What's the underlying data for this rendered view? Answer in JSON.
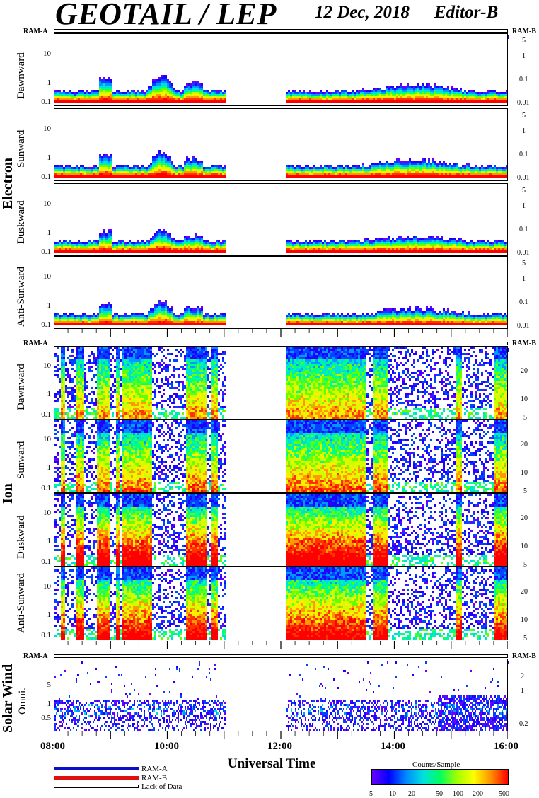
{
  "header": {
    "title": "GEOTAIL / LEP",
    "date": "12 Dec, 2018",
    "editor": "Editor-B"
  },
  "status_labels": {
    "left": "RAM-A",
    "right": "RAM-B"
  },
  "groups": {
    "electron": "Electron",
    "ion": "Ion",
    "solar_wind": "Solar Wind"
  },
  "panels": {
    "e_dawn": "Dawnward",
    "e_sun": "Sunward",
    "e_dusk": "Duskward",
    "e_anti": "Anti-Sunward",
    "i_dawn": "Dawnward",
    "i_sun": "Sunward",
    "i_dusk": "Duskward",
    "i_anti": "Anti-Sunward",
    "sw_omni": "Omni."
  },
  "electron_left_ticks": [
    "10",
    "1",
    "0.1"
  ],
  "electron_right_ticks": [
    "5",
    "1",
    "0.1",
    "0.01"
  ],
  "ion_left_ticks": [
    "10",
    "1",
    "0.1"
  ],
  "ion_right_ticks": [
    "20",
    "10",
    "5"
  ],
  "sw_left_ticks": [
    "5",
    "1",
    "0.5"
  ],
  "sw_right_ticks": [
    "2",
    "1",
    "0.2"
  ],
  "x_axis": {
    "title": "Universal Time",
    "ticks": [
      "08:00",
      "10:00",
      "12:00",
      "14:00",
      "16:00"
    ]
  },
  "legend": {
    "ram_a": "RAM-A",
    "ram_b": "RAM-B",
    "no_data": "Lack of Data",
    "colors": {
      "ram_a": "#0a10c8",
      "ram_b": "#e01010"
    }
  },
  "colorbar": {
    "title": "Counts/Sample",
    "ticks": [
      "5",
      "10",
      "20",
      "50",
      "100",
      "200",
      "500"
    ]
  },
  "chart_data": {
    "type": "heatmap",
    "title": "GEOTAIL / LEP",
    "xlabel": "Universal Time",
    "xlim": [
      "08:00",
      "16:00"
    ],
    "data_gap": [
      "11:00",
      "12:05"
    ],
    "panels": [
      {
        "group": "Electron",
        "name": "Dawnward",
        "ylim": [
          0.08,
          50
        ],
        "yscale": "log"
      },
      {
        "group": "Electron",
        "name": "Sunward",
        "ylim": [
          0.08,
          50
        ],
        "yscale": "log"
      },
      {
        "group": "Electron",
        "name": "Duskward",
        "ylim": [
          0.08,
          50
        ],
        "yscale": "log"
      },
      {
        "group": "Electron",
        "name": "Anti-Sunward",
        "ylim": [
          0.08,
          50
        ],
        "yscale": "log"
      },
      {
        "group": "Ion",
        "name": "Dawnward",
        "ylim": [
          0.08,
          50
        ],
        "yscale": "log"
      },
      {
        "group": "Ion",
        "name": "Sunward",
        "ylim": [
          0.08,
          50
        ],
        "yscale": "log"
      },
      {
        "group": "Ion",
        "name": "Duskward",
        "ylim": [
          0.08,
          50
        ],
        "yscale": "log"
      },
      {
        "group": "Ion",
        "name": "Anti-Sunward",
        "ylim": [
          0.08,
          50
        ],
        "yscale": "log"
      },
      {
        "group": "Solar Wind",
        "name": "Omni.",
        "ylim": [
          0.25,
          8
        ],
        "yscale": "log"
      }
    ],
    "colorbar_range": [
      5,
      500
    ],
    "colorbar_label": "Counts/Sample"
  }
}
